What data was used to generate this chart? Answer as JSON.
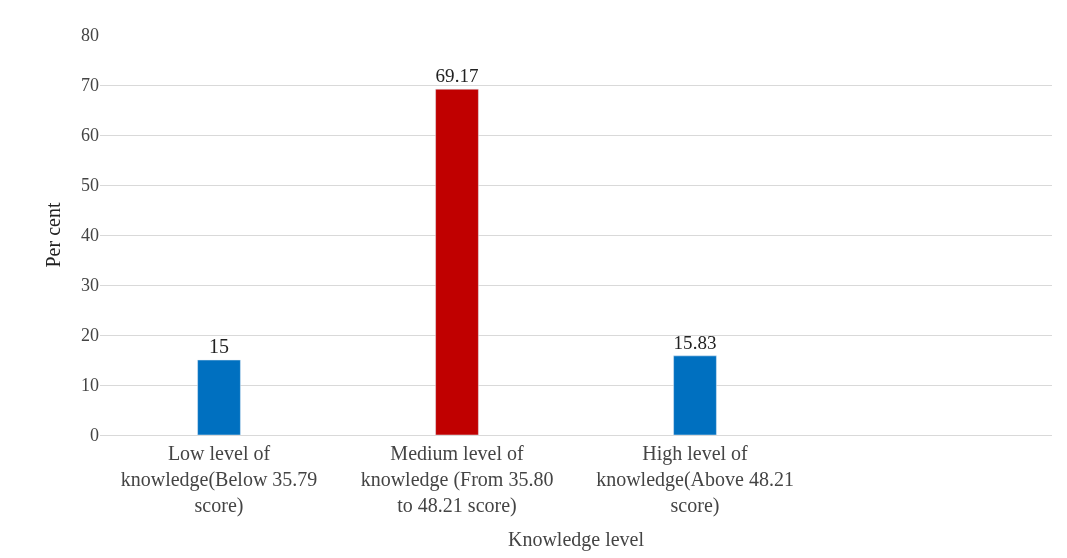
{
  "chart_data": {
    "type": "bar",
    "xlabel": "Knowledge level",
    "ylabel": "Per cent",
    "categories": [
      "Low level of knowledge(Below 35.79 score)",
      "Medium level of knowledge (From 35.80 to 48.21 score)",
      "High level of knowledge(Above 48.21 score)",
      null
    ],
    "values": [
      15,
      69.17,
      15.83,
      null
    ],
    "colors": [
      "#0070c0",
      "#c00000",
      "#0070c0",
      "#0070c0"
    ],
    "ylim": [
      0,
      80
    ],
    "yticks": [
      0,
      10,
      20,
      30,
      40,
      50,
      60,
      70,
      80
    ],
    "grid": "y",
    "data_labels": true
  }
}
